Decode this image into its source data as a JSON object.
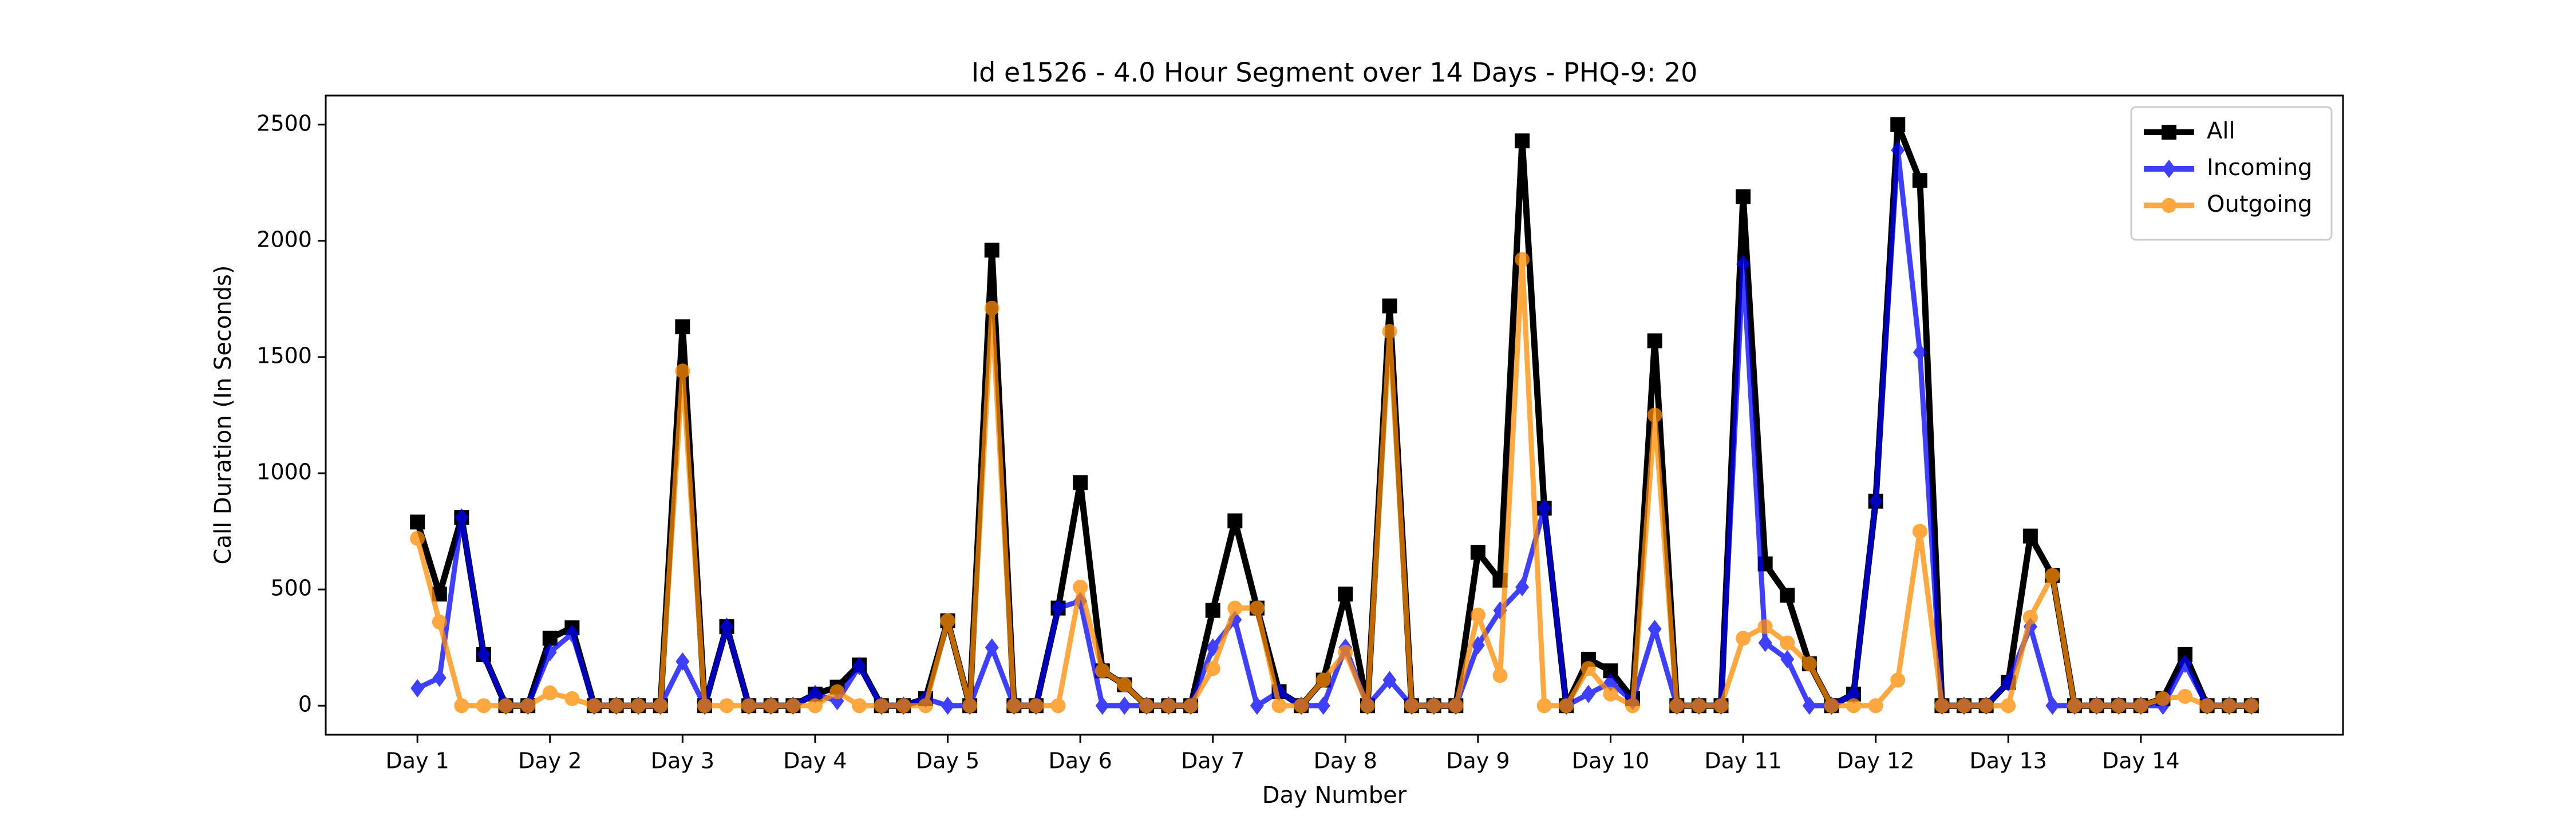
{
  "chart_data": {
    "type": "line",
    "title": "Id e1526 - 4.0 Hour Segment over 14 Days - PHQ-9: 20",
    "xlabel": "Day Number",
    "ylabel": "Call Duration (In Seconds)",
    "categories": [
      "Day 1",
      null,
      null,
      null,
      null,
      null,
      "Day 2",
      null,
      null,
      null,
      null,
      null,
      "Day 3",
      null,
      null,
      null,
      null,
      null,
      "Day 4",
      null,
      null,
      null,
      null,
      null,
      "Day 5",
      null,
      null,
      null,
      null,
      null,
      "Day 6",
      null,
      null,
      null,
      null,
      null,
      "Day 7",
      null,
      null,
      null,
      null,
      null,
      "Day 8",
      null,
      null,
      null,
      null,
      null,
      "Day 9",
      null,
      null,
      null,
      null,
      null,
      "Day 10",
      null,
      null,
      null,
      null,
      null,
      "Day 11",
      null,
      null,
      null,
      null,
      null,
      "Day 12",
      null,
      null,
      null,
      null,
      null,
      "Day 13",
      null,
      null,
      null,
      null,
      null,
      "Day 14",
      null,
      null,
      null,
      null,
      null
    ],
    "series": [
      {
        "name": "All",
        "color": "#000000",
        "opacity": 1,
        "marker": "square",
        "values": [
          790,
          480,
          810,
          220,
          0,
          0,
          290,
          335,
          0,
          0,
          0,
          0,
          1630,
          0,
          340,
          0,
          0,
          0,
          50,
          80,
          175,
          0,
          0,
          30,
          365,
          0,
          1960,
          0,
          0,
          420,
          960,
          150,
          90,
          0,
          0,
          0,
          410,
          795,
          420,
          60,
          0,
          110,
          480,
          0,
          1720,
          0,
          0,
          0,
          660,
          540,
          2430,
          850,
          0,
          200,
          150,
          30,
          1570,
          0,
          0,
          0,
          2190,
          610,
          475,
          180,
          0,
          50,
          880,
          2500,
          2260,
          0,
          0,
          0,
          100,
          730,
          560,
          0,
          0,
          0,
          0,
          30,
          220,
          0,
          0,
          0
        ]
      },
      {
        "name": "Incoming",
        "color": "#0000ff",
        "opacity": 0.75,
        "marker": "diamond",
        "values": [
          75,
          120,
          810,
          220,
          0,
          0,
          230,
          310,
          0,
          0,
          0,
          0,
          190,
          0,
          340,
          0,
          0,
          0,
          50,
          20,
          170,
          0,
          0,
          30,
          0,
          0,
          250,
          0,
          0,
          420,
          450,
          0,
          0,
          0,
          0,
          0,
          250,
          370,
          0,
          60,
          0,
          0,
          250,
          0,
          110,
          0,
          0,
          0,
          260,
          410,
          510,
          850,
          0,
          50,
          100,
          20,
          330,
          0,
          0,
          0,
          1900,
          270,
          200,
          0,
          0,
          50,
          880,
          2390,
          1520,
          0,
          0,
          0,
          100,
          340,
          0,
          0,
          0,
          0,
          0,
          0,
          180,
          0,
          0,
          0
        ]
      },
      {
        "name": "Outgoing",
        "color": "#ff8c00",
        "opacity": 0.75,
        "marker": "circle",
        "values": [
          720,
          360,
          0,
          0,
          0,
          0,
          55,
          30,
          0,
          0,
          0,
          0,
          1440,
          0,
          0,
          0,
          0,
          0,
          0,
          60,
          0,
          0,
          0,
          0,
          365,
          0,
          1710,
          0,
          0,
          0,
          510,
          150,
          90,
          0,
          0,
          0,
          160,
          420,
          420,
          0,
          0,
          110,
          230,
          0,
          1610,
          0,
          0,
          0,
          390,
          130,
          1920,
          0,
          0,
          160,
          50,
          0,
          1250,
          0,
          0,
          0,
          290,
          340,
          270,
          180,
          0,
          0,
          0,
          110,
          750,
          0,
          0,
          0,
          0,
          380,
          560,
          0,
          0,
          0,
          0,
          30,
          40,
          0,
          0,
          0
        ]
      }
    ],
    "ylim": [
      -125,
      2625
    ],
    "yticks": [
      0,
      500,
      1000,
      1500,
      2000,
      2500
    ],
    "grid": false,
    "legend": "upper right"
  }
}
